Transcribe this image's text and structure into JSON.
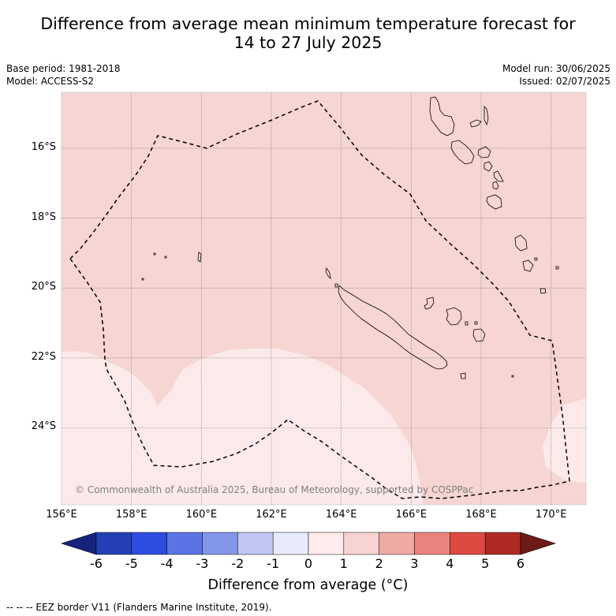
{
  "title": {
    "line1": "Difference from average mean minimum temperature forecast for",
    "line2": "14 to 27 July 2025"
  },
  "meta": {
    "base_period": "Base period: 1981-2018",
    "model": "Model: ACCESS-S2",
    "model_run": "Model run: 30/06/2025",
    "issued": "Issued: 02/07/2025"
  },
  "map": {
    "lon_range": [
      156,
      171
    ],
    "lat_range": [
      -26.2,
      -14.4
    ],
    "lat_ticks": [
      {
        "value": -16,
        "label": "16°S"
      },
      {
        "value": -18,
        "label": "18°S"
      },
      {
        "value": -20,
        "label": "20°S"
      },
      {
        "value": -22,
        "label": "22°S"
      },
      {
        "value": -24,
        "label": "24°S"
      }
    ],
    "lon_ticks": [
      {
        "value": 156,
        "label": "156°E"
      },
      {
        "value": 158,
        "label": "158°E"
      },
      {
        "value": 160,
        "label": "160°E"
      },
      {
        "value": 162,
        "label": "162°E"
      },
      {
        "value": 164,
        "label": "164°E"
      },
      {
        "value": 166,
        "label": "166°E"
      },
      {
        "value": 168,
        "label": "168°E"
      },
      {
        "value": 170,
        "label": "170°E"
      }
    ],
    "colors": {
      "range_1_2": "#f6d5d3",
      "range_0_1": "#fbeae9"
    },
    "copyright": "© Commonwealth of Australia 2025, Bureau of Meteorology, supported by COSPPac"
  },
  "colorbar": {
    "ticks": [
      "-6",
      "-5",
      "-4",
      "-3",
      "-2",
      "-1",
      "0",
      "1",
      "2",
      "3",
      "4",
      "5",
      "6"
    ],
    "colors": [
      "#15237a",
      "#2340b4",
      "#2e4de0",
      "#5a74e6",
      "#8396ea",
      "#c0c6f4",
      "#e8ebfa",
      "#fdeceb",
      "#f6d3d2",
      "#efaaa6",
      "#e8847e",
      "#dd4a40",
      "#ae2a22",
      "#6e1a16"
    ],
    "label": "Difference from average (°C)"
  },
  "footer": "-- -- -- EEZ border V11 (Flanders Marine Institute, 2019)."
}
